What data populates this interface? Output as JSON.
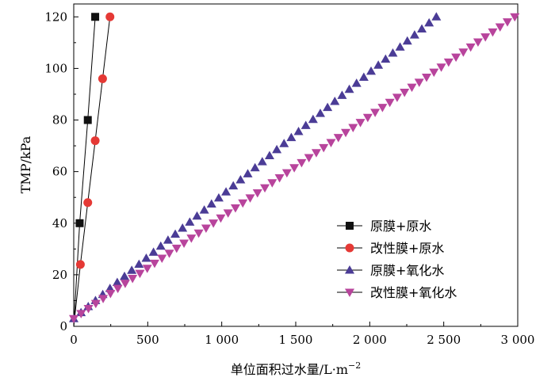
{
  "chart_data": {
    "type": "line",
    "xlabel": "单位面积过水量/L·m",
    "xlabel_sup": "−2",
    "ylabel": "TMP/kPa",
    "xlim": [
      0,
      3000
    ],
    "ylim": [
      0,
      125
    ],
    "x_ticks": [
      0,
      500,
      1000,
      1500,
      2000,
      2500,
      3000
    ],
    "x_tick_labels": [
      "0",
      "500",
      "1 000",
      "1 500",
      "2 000",
      "2 500",
      "3 000"
    ],
    "y_ticks": [
      0,
      20,
      40,
      60,
      80,
      100,
      120
    ],
    "y_tick_labels": [
      "0",
      "20",
      "40",
      "60",
      "80",
      "100",
      "120"
    ],
    "legend_position": "lower-right",
    "series": [
      {
        "name": "原膜+原水",
        "marker": "square",
        "color": "#111111",
        "x": [
          0,
          40,
          95,
          145
        ],
        "y": [
          0,
          40,
          80,
          120
        ]
      },
      {
        "name": "改性膜+原水",
        "marker": "circle",
        "color": "#e53935",
        "x": [
          0,
          45,
          95,
          145,
          195,
          245
        ],
        "y": [
          0,
          24,
          48,
          72,
          96,
          120
        ]
      },
      {
        "name": "原膜+氧化水",
        "marker": "triangle-up",
        "color": "#4b3c96",
        "x": [
          0,
          2450
        ],
        "y": [
          3,
          120
        ],
        "n_points": 50
      },
      {
        "name": "改性膜+氧化水",
        "marker": "triangle-down",
        "color": "#b8449c",
        "x": [
          0,
          2980
        ],
        "y": [
          3,
          120
        ],
        "n_points": 60
      }
    ]
  }
}
